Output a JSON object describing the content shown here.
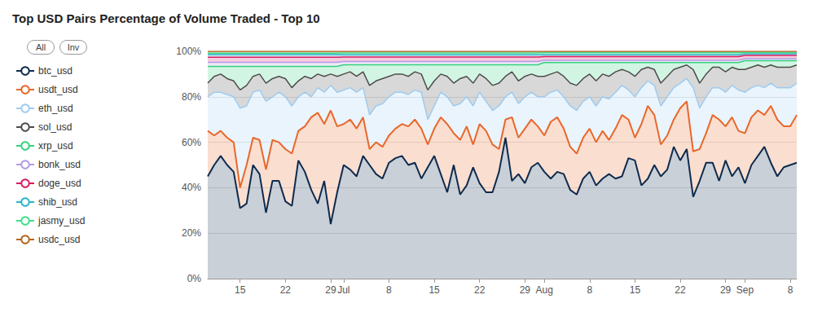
{
  "chart_data": {
    "type": "area",
    "title": "Top USD Pairs Percentage of Volume Traded - Top 10",
    "annotations": [
      "All",
      "Inv"
    ],
    "stacked": true,
    "grid": true,
    "legend": "left",
    "categories": [
      null,
      null,
      null,
      null,
      null,
      "15",
      null,
      null,
      null,
      null,
      null,
      null,
      "22",
      null,
      null,
      null,
      null,
      null,
      null,
      "29",
      null,
      "Jul",
      null,
      null,
      null,
      null,
      null,
      null,
      "8",
      null,
      null,
      null,
      null,
      null,
      null,
      "15",
      null,
      null,
      null,
      null,
      null,
      null,
      "22",
      null,
      null,
      null,
      null,
      null,
      null,
      "29",
      null,
      null,
      "Aug",
      null,
      null,
      null,
      null,
      null,
      null,
      "8",
      null,
      null,
      null,
      null,
      null,
      null,
      "15",
      null,
      null,
      null,
      null,
      null,
      null,
      "22",
      null,
      null,
      null,
      null,
      null,
      null,
      "29",
      null,
      null,
      "Sep",
      null,
      null,
      null,
      null,
      null,
      null,
      "8",
      null
    ],
    "ylim": [
      0,
      100
    ],
    "yticks": [
      {
        "value": 0,
        "label": "0%"
      },
      {
        "value": 20,
        "label": "20%"
      },
      {
        "value": 40,
        "label": "40%"
      },
      {
        "value": 60,
        "label": "60%"
      },
      {
        "value": 80,
        "label": "80%"
      },
      {
        "value": 100,
        "label": "100%"
      }
    ],
    "series": [
      {
        "name": "btc_usd",
        "color": "#0d2b4e",
        "values": [
          45,
          50,
          54,
          50,
          47,
          31,
          33,
          50,
          46,
          29,
          43,
          43,
          34,
          32,
          52,
          47,
          39,
          33,
          43,
          24,
          38,
          50,
          48,
          45,
          54,
          50,
          46,
          44,
          51,
          53,
          54,
          50,
          51,
          44,
          49,
          54,
          46,
          38,
          50,
          37,
          41,
          49,
          42,
          38,
          38,
          47,
          62,
          43,
          46,
          42,
          49,
          51,
          47,
          44,
          47,
          46,
          39,
          37,
          44,
          47,
          41,
          44,
          46,
          44,
          45,
          53,
          52,
          41,
          44,
          50,
          45,
          48,
          58,
          52,
          57,
          36,
          43,
          51,
          51,
          43,
          52,
          45,
          49,
          42,
          50,
          54,
          58,
          51,
          45,
          49,
          50,
          51
        ]
      },
      {
        "name": "usdt_usd",
        "color": "#e8672a",
        "values": [
          20,
          13,
          11,
          12,
          13,
          9,
          17,
          12,
          15,
          19,
          18,
          17,
          23,
          23,
          13,
          20,
          32,
          40,
          25,
          50,
          29,
          18,
          22,
          21,
          17,
          7,
          14,
          14,
          12,
          13,
          14,
          17,
          19,
          22,
          10,
          12,
          25,
          30,
          14,
          24,
          26,
          10,
          26,
          27,
          21,
          10,
          8,
          28,
          16,
          24,
          21,
          16,
          16,
          25,
          24,
          20,
          19,
          18,
          18,
          19,
          19,
          21,
          15,
          22,
          27,
          17,
          10,
          27,
          32,
          22,
          14,
          15,
          12,
          23,
          21,
          20,
          14,
          13,
          21,
          27,
          15,
          26,
          16,
          22,
          21,
          20,
          14,
          25,
          25,
          18,
          17,
          21
        ]
      },
      {
        "name": "eth_usd",
        "color": "#9ecbf0",
        "values": [
          15,
          19,
          17,
          19,
          20,
          35,
          26,
          20,
          22,
          30,
          19,
          22,
          23,
          21,
          15,
          15,
          9,
          11,
          14,
          11,
          15,
          15,
          14,
          16,
          13,
          15,
          16,
          19,
          17,
          16,
          14,
          14,
          13,
          16,
          11,
          10,
          11,
          12,
          12,
          16,
          13,
          17,
          14,
          13,
          15,
          19,
          10,
          11,
          15,
          14,
          12,
          13,
          17,
          13,
          12,
          14,
          18,
          19,
          16,
          14,
          16,
          15,
          18,
          16,
          13,
          13,
          18,
          16,
          11,
          13,
          17,
          17,
          14,
          11,
          10,
          28,
          18,
          16,
          12,
          14,
          15,
          14,
          18,
          18,
          13,
          11,
          12,
          10,
          14,
          17,
          17,
          14
        ]
      },
      {
        "name": "sol_usd",
        "color": "#4d4d4d",
        "values": [
          6,
          7,
          8,
          7,
          7,
          8,
          9,
          7,
          7,
          8,
          8,
          7,
          8,
          8,
          7,
          7,
          8,
          6,
          7,
          5,
          7,
          7,
          7,
          7,
          7,
          13,
          11,
          11,
          9,
          8,
          8,
          8,
          8,
          8,
          13,
          11,
          8,
          9,
          10,
          11,
          9,
          10,
          8,
          10,
          11,
          10,
          9,
          9,
          10,
          9,
          8,
          9,
          9,
          8,
          8,
          9,
          10,
          11,
          10,
          10,
          11,
          10,
          10,
          9,
          7,
          8,
          9,
          8,
          6,
          7,
          10,
          9,
          8,
          7,
          6,
          8,
          11,
          10,
          9,
          9,
          9,
          8,
          9,
          10,
          9,
          9,
          9,
          8,
          9,
          9,
          9,
          8
        ]
      },
      {
        "name": "xrp_usd",
        "color": "#34d17f",
        "values": [
          7.4,
          4.4,
          3.4,
          5.4,
          6.4,
          10.4,
          8.4,
          4.4,
          3.4,
          7.4,
          5.4,
          4.4,
          5.4,
          9.4,
          6.4,
          4.4,
          5.4,
          3.4,
          4.4,
          3.4,
          4.4,
          4.1,
          3.1,
          5.1,
          3.1,
          9.1,
          7.1,
          6.1,
          5.1,
          4.1,
          4.1,
          5.1,
          3.1,
          4.1,
          11.1,
          7.1,
          4.1,
          5.1,
          8.1,
          6.1,
          5.1,
          8.1,
          4.1,
          6.1,
          9.1,
          8.1,
          5.1,
          3.1,
          7.1,
          5.1,
          4.1,
          5.1,
          6.1,
          5.1,
          4.1,
          6.1,
          9.1,
          10.1,
          7.1,
          5.1,
          8.1,
          5.1,
          6.1,
          4.1,
          3.1,
          4.1,
          6.1,
          3.1,
          2.1,
          3.1,
          9.1,
          6.1,
          3.1,
          2.1,
          1.1,
          3.1,
          9.1,
          5.1,
          2.1,
          2.1,
          4.1,
          2.1,
          3.1,
          3.9,
          2.9,
          1.9,
          2.9,
          1.9,
          2.9,
          2.9,
          2.9,
          1.9
        ]
      },
      {
        "name": "bonk_usd",
        "color": "#b49ae6",
        "values": [
          1.8,
          1.8,
          1.8,
          1.8,
          1.8,
          1.8,
          1.8,
          1.8,
          1.8,
          1.8,
          1.8,
          1.8,
          1.8,
          1.8,
          1.8,
          1.8,
          1.8,
          1.8,
          1.8,
          1.8,
          1.8,
          1.4,
          1.4,
          1.4,
          1.4,
          1.4,
          1.4,
          1.4,
          1.4,
          1.4,
          1.4,
          1.4,
          1.4,
          1.4,
          1.4,
          1.4,
          1.4,
          1.4,
          1.4,
          1.4,
          1.4,
          1.4,
          1.4,
          1.4,
          1.4,
          1.4,
          1.4,
          1.4,
          1.4,
          1.4,
          1.4,
          1.4,
          1.0,
          1.0,
          1.0,
          1.0,
          1.0,
          1.0,
          1.0,
          1.0,
          1.0,
          1.0,
          1.0,
          1.0,
          1.0,
          1.0,
          1.0,
          1.0,
          1.0,
          1.0,
          1.0,
          1.0,
          1.0,
          1.0,
          1.0,
          1.0,
          1.0,
          1.0,
          1.0,
          1.0,
          1.0,
          1.0,
          1.0,
          0.9,
          0.9,
          0.9,
          0.9,
          0.9,
          0.9,
          0.9,
          0.9,
          0.9
        ]
      },
      {
        "name": "doge_usd",
        "color": "#d81b60",
        "values": [
          2.2,
          2.2,
          2.2,
          2.2,
          2.2,
          2.2,
          2.2,
          2.2,
          2.2,
          2.2,
          2.2,
          2.2,
          2.2,
          2.2,
          2.2,
          2.2,
          2.2,
          2.2,
          2.2,
          2.2,
          2.2,
          2.0,
          2.0,
          2.0,
          2.0,
          2.0,
          2.0,
          2.0,
          2.0,
          2.0,
          2.0,
          2.0,
          2.0,
          2.0,
          2.0,
          2.0,
          2.0,
          2.0,
          2.0,
          2.0,
          2.0,
          2.0,
          2.0,
          2.0,
          2.0,
          2.0,
          2.0,
          2.0,
          2.0,
          2.0,
          2.0,
          2.0,
          1.6,
          1.6,
          1.6,
          1.6,
          1.6,
          1.6,
          1.6,
          1.6,
          1.6,
          1.6,
          1.6,
          1.6,
          1.6,
          1.6,
          1.6,
          1.6,
          1.6,
          1.6,
          1.6,
          1.6,
          1.6,
          1.6,
          1.6,
          1.6,
          1.6,
          1.6,
          1.6,
          1.6,
          1.6,
          1.6,
          1.6,
          1.4,
          1.4,
          1.4,
          1.4,
          1.4,
          1.4,
          1.4,
          1.4,
          1.4
        ]
      },
      {
        "name": "shib_usd",
        "color": "#2bb3c9",
        "values": [
          1.2,
          1.2,
          1.2,
          1.2,
          1.2,
          1.2,
          1.2,
          1.2,
          1.2,
          1.2,
          1.2,
          1.2,
          1.2,
          1.2,
          1.2,
          1.2,
          1.2,
          1.2,
          1.2,
          1.2,
          1.2,
          1.0,
          1.0,
          1.0,
          1.0,
          1.0,
          1.0,
          1.0,
          1.0,
          1.0,
          1.0,
          1.0,
          1.0,
          1.0,
          1.0,
          1.0,
          1.0,
          1.0,
          1.0,
          1.0,
          1.0,
          1.0,
          1.0,
          1.0,
          1.0,
          1.0,
          1.0,
          1.0,
          1.0,
          1.0,
          1.0,
          1.0,
          0.8,
          0.8,
          0.8,
          0.8,
          0.8,
          0.8,
          0.8,
          0.8,
          0.8,
          0.8,
          0.8,
          0.8,
          0.8,
          0.8,
          0.8,
          0.8,
          0.8,
          0.8,
          0.8,
          0.8,
          0.8,
          0.8,
          0.8,
          0.8,
          0.8,
          0.8,
          0.8,
          0.8,
          0.8,
          0.8,
          0.8,
          0.7,
          0.7,
          0.7,
          0.7,
          0.7,
          0.7,
          0.7,
          0.7,
          0.7
        ]
      },
      {
        "name": "jasmy_usd",
        "color": "#3fe08a",
        "values": [
          0.6,
          0.6,
          0.6,
          0.6,
          0.6,
          0.6,
          0.6,
          0.6,
          0.6,
          0.6,
          0.6,
          0.6,
          0.6,
          0.6,
          0.6,
          0.6,
          0.6,
          0.6,
          0.6,
          0.6,
          0.6,
          0.8,
          0.8,
          0.8,
          0.8,
          0.8,
          0.8,
          0.8,
          0.8,
          0.8,
          0.8,
          0.8,
          0.8,
          0.8,
          0.8,
          0.8,
          0.8,
          0.8,
          0.8,
          0.8,
          0.8,
          0.8,
          0.8,
          0.8,
          0.8,
          0.8,
          0.8,
          0.8,
          0.8,
          0.8,
          0.8,
          0.8,
          0.9,
          0.9,
          0.9,
          0.9,
          0.9,
          0.9,
          0.9,
          0.9,
          0.9,
          0.9,
          0.9,
          0.9,
          0.9,
          0.9,
          0.9,
          0.9,
          0.9,
          0.9,
          0.9,
          0.9,
          0.9,
          0.9,
          0.9,
          0.9,
          0.9,
          0.9,
          0.9,
          0.9,
          0.9,
          0.9,
          0.9,
          0.6,
          0.6,
          0.6,
          0.6,
          0.6,
          0.6,
          0.6,
          0.6,
          0.6
        ]
      },
      {
        "name": "usdc_usd",
        "color": "#b5651d",
        "values": [
          0.8,
          0.8,
          0.8,
          0.8,
          0.8,
          0.8,
          0.8,
          0.8,
          0.8,
          0.8,
          0.8,
          0.8,
          0.8,
          0.8,
          0.8,
          0.8,
          0.8,
          0.8,
          0.8,
          0.8,
          0.8,
          0.7,
          0.7,
          0.7,
          0.7,
          0.7,
          0.7,
          0.7,
          0.7,
          0.7,
          0.7,
          0.7,
          0.7,
          0.7,
          0.7,
          0.7,
          0.7,
          0.7,
          0.7,
          0.7,
          0.7,
          0.7,
          0.7,
          0.7,
          0.7,
          0.7,
          0.7,
          0.7,
          0.7,
          0.7,
          0.7,
          0.7,
          0.6,
          0.6,
          0.6,
          0.6,
          0.6,
          0.6,
          0.6,
          0.6,
          0.6,
          0.6,
          0.6,
          0.6,
          0.6,
          0.6,
          0.6,
          0.6,
          0.6,
          0.6,
          0.6,
          0.6,
          0.6,
          0.6,
          0.6,
          0.6,
          0.6,
          0.6,
          0.6,
          0.6,
          0.6,
          0.6,
          0.6,
          0.5,
          0.5,
          0.5,
          0.5,
          0.5,
          0.5,
          0.5,
          0.5,
          0.5
        ]
      }
    ]
  }
}
